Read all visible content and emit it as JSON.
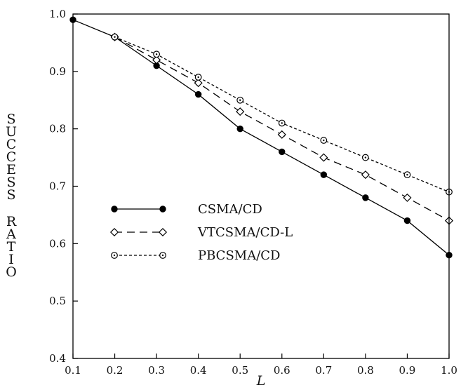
{
  "chart_data": {
    "type": "line",
    "title": "",
    "xlabel": "L",
    "ylabel": "SUCCESS RATIO",
    "xlim": [
      0.1,
      1.0
    ],
    "ylim": [
      0.4,
      1.0
    ],
    "x": [
      0.1,
      0.2,
      0.3,
      0.4,
      0.5,
      0.6,
      0.7,
      0.8,
      0.9,
      1.0
    ],
    "x_tick_labels": [
      "0.1",
      "0.2",
      "0.3",
      "0.4",
      "0.5",
      "0.6",
      "0.7",
      "0.8",
      "0.9",
      "1.0"
    ],
    "y_ticks": [
      0.4,
      0.5,
      0.6,
      0.7,
      0.8,
      0.9,
      1.0
    ],
    "y_tick_labels": [
      "0.4",
      "0.5",
      "0.6",
      "0.7",
      "0.8",
      "0.9",
      "1.0"
    ],
    "grid": false,
    "legend_position": "bottom-left",
    "series": [
      {
        "name": "CSMA/CD",
        "marker": "filled-circle",
        "line_style": "solid",
        "color": "#000000",
        "values": [
          null,
          0.96,
          0.91,
          0.86,
          0.8,
          0.76,
          0.72,
          0.68,
          0.64,
          0.58
        ]
      },
      {
        "name": "VTCSMA/CD-L",
        "marker": "open-diamond",
        "line_style": "dashed",
        "color": "#000000",
        "values": [
          null,
          0.96,
          0.92,
          0.88,
          0.83,
          0.79,
          0.75,
          0.72,
          0.68,
          0.64
        ]
      },
      {
        "name": "PBCSMA/CD",
        "marker": "open-circle-dot",
        "line_style": "dotted",
        "color": "#000000",
        "values": [
          null,
          0.96,
          0.93,
          0.89,
          0.85,
          0.81,
          0.78,
          0.75,
          0.72,
          0.69
        ]
      }
    ],
    "shared_start": {
      "x": [
        0.1,
        0.2
      ],
      "values": [
        0.99,
        0.96
      ]
    }
  }
}
